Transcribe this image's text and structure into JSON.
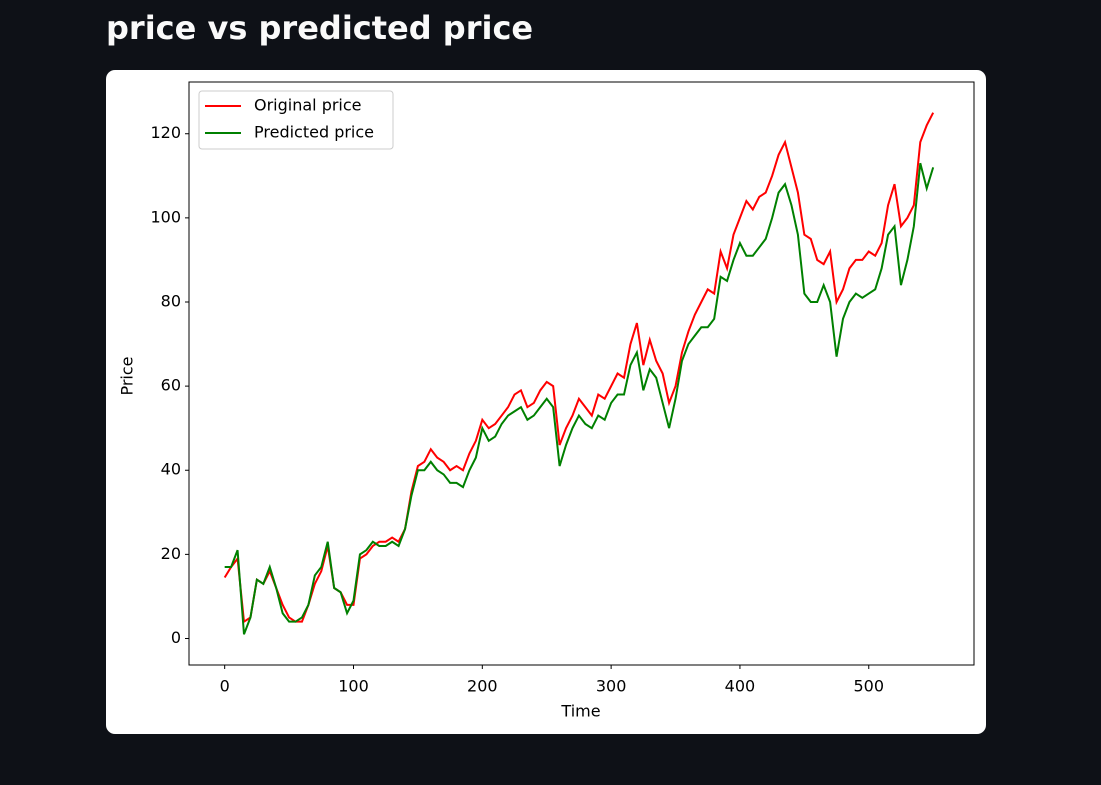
{
  "chart_data": {
    "type": "line",
    "title": "price vs predicted price",
    "x_label": "Time",
    "y_label": "Price",
    "x": [
      0,
      5,
      10,
      15,
      20,
      25,
      30,
      35,
      40,
      45,
      50,
      55,
      60,
      65,
      70,
      75,
      80,
      85,
      90,
      95,
      100,
      105,
      110,
      115,
      120,
      125,
      130,
      135,
      140,
      145,
      150,
      155,
      160,
      165,
      170,
      175,
      180,
      185,
      190,
      195,
      200,
      205,
      210,
      215,
      220,
      225,
      230,
      235,
      240,
      245,
      250,
      255,
      260,
      265,
      270,
      275,
      280,
      285,
      290,
      295,
      300,
      305,
      310,
      315,
      320,
      325,
      330,
      335,
      340,
      345,
      350,
      355,
      360,
      365,
      370,
      375,
      380,
      385,
      390,
      395,
      400,
      405,
      410,
      415,
      420,
      425,
      430,
      435,
      440,
      445,
      450,
      455,
      460,
      465,
      470,
      475,
      480,
      485,
      490,
      495,
      500,
      505,
      510,
      515,
      520,
      525,
      530,
      535,
      540,
      545,
      550
    ],
    "series": [
      {
        "name": "Original price",
        "color": "#ff0000",
        "values": [
          14.5,
          17,
          19,
          4,
          5,
          14,
          13,
          16,
          12,
          8,
          5,
          4,
          4,
          8,
          13,
          16,
          22,
          12,
          11,
          8,
          8,
          19,
          20,
          22,
          23,
          23,
          24,
          23,
          26,
          35,
          41,
          42,
          45,
          43,
          42,
          40,
          41,
          40,
          44,
          47,
          52,
          50,
          51,
          53,
          55,
          58,
          59,
          55,
          56,
          59,
          61,
          60,
          46,
          50,
          53,
          57,
          55,
          53,
          58,
          57,
          60,
          63,
          62,
          70,
          75,
          65,
          71,
          66,
          63,
          56,
          60,
          68,
          73,
          77,
          80,
          83,
          82,
          92,
          88,
          96,
          100,
          104,
          102,
          105,
          106,
          110,
          115,
          118,
          112,
          106,
          96,
          95,
          90,
          89,
          92,
          80,
          83,
          88,
          90,
          90,
          92,
          91,
          94,
          103,
          108,
          98,
          100,
          103,
          118,
          122,
          125
        ]
      },
      {
        "name": "Predicted price",
        "color": "#008000",
        "values": [
          17,
          17,
          21,
          1,
          5,
          14,
          13,
          17,
          12,
          6,
          4,
          4,
          5,
          8,
          15,
          17,
          23,
          12,
          11,
          6,
          9,
          20,
          21,
          23,
          22,
          22,
          23,
          22,
          26,
          34,
          40,
          40,
          42,
          40,
          39,
          37,
          37,
          36,
          40,
          43,
          50,
          47,
          48,
          51,
          53,
          54,
          55,
          52,
          53,
          55,
          57,
          55,
          41,
          46,
          50,
          53,
          51,
          50,
          53,
          52,
          56,
          58,
          58,
          65,
          68,
          59,
          64,
          62,
          56,
          50,
          57,
          66,
          70,
          72,
          74,
          74,
          76,
          86,
          85,
          90,
          94,
          91,
          91,
          93,
          95,
          100,
          106,
          108,
          103,
          96,
          82,
          80,
          80,
          84,
          80,
          67,
          76,
          80,
          82,
          81,
          82,
          83,
          88,
          96,
          98,
          84,
          90,
          98,
          113,
          107,
          112
        ]
      }
    ],
    "xlim": [
      -27.7,
      581.7
    ],
    "ylim": [
      -6.3,
      132.3
    ],
    "xticks": [
      0,
      100,
      200,
      300,
      400,
      500
    ],
    "yticks": [
      0,
      20,
      40,
      60,
      80,
      100,
      120
    ],
    "grid": false,
    "legend": "upper-left"
  }
}
